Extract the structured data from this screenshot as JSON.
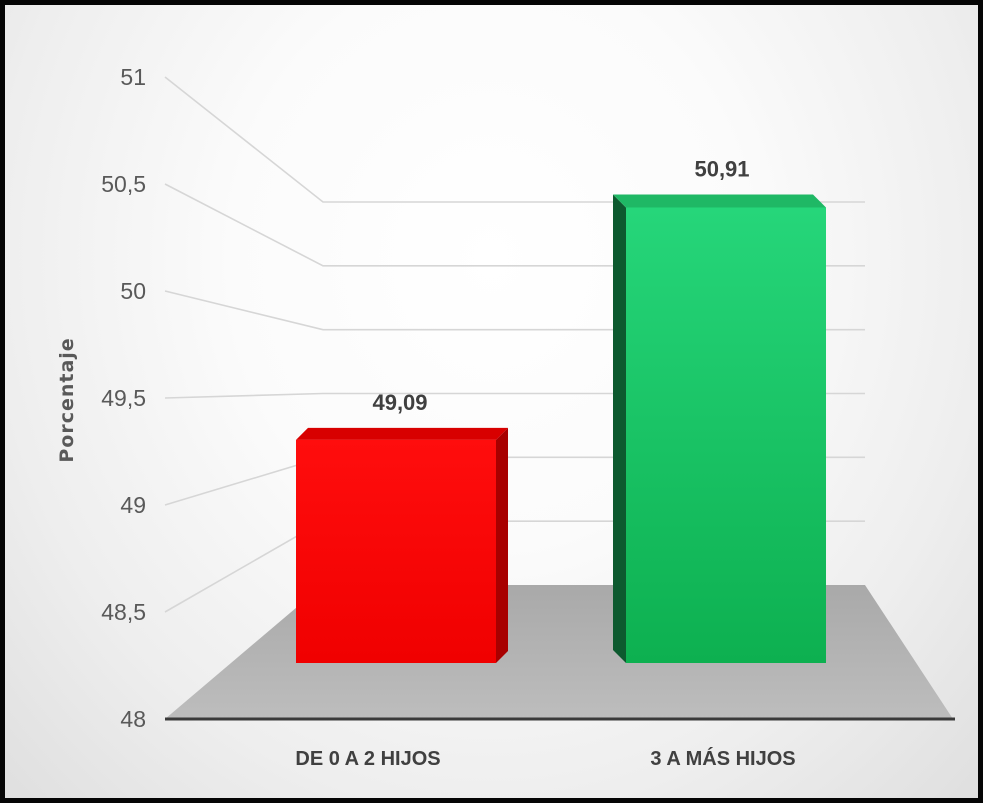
{
  "chart_data": {
    "type": "bar",
    "title": "",
    "xlabel": "",
    "ylabel": "Porcentaje",
    "categories": [
      "DE 0 A 2 HIJOS",
      "3 A MÁS HIJOS"
    ],
    "values": [
      49.09,
      50.91
    ],
    "value_labels": [
      "49,09",
      "50,91"
    ],
    "bar_colors": [
      "#ff0000",
      "#11b553"
    ],
    "ylim": [
      48,
      51
    ],
    "yticks": [
      48,
      48.5,
      49,
      49.5,
      50,
      50.5,
      51
    ],
    "ytick_labels": [
      "48",
      "48,5",
      "49",
      "49,5",
      "50",
      "50,5",
      "51"
    ],
    "grid": true,
    "legend": "none",
    "style": "3d-perspective"
  }
}
